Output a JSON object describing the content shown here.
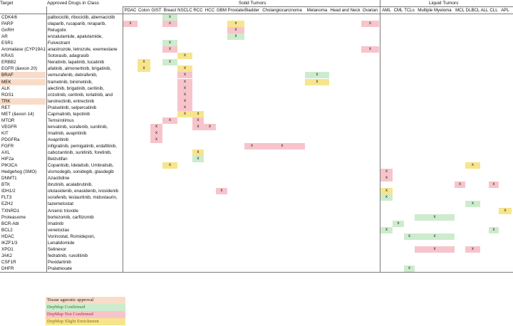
{
  "header": {
    "target": "Target",
    "drugs": "Approved Drugs in Class",
    "solid_group": "Solid Tumors",
    "liquid_group": "Liquid Tumors"
  },
  "solid_columns": [
    "PDAC",
    "Colon",
    "GIST",
    "Breast",
    "NSCLC",
    "RCC",
    "HCC",
    "GBM",
    "Prostate",
    "Bladder",
    "Cholangiocarcinoma",
    "Melanoma",
    "Head and Neck",
    "Ovarian"
  ],
  "liquid_columns": [
    "AML",
    "CML",
    "TCLs",
    "Multiple Myeloma",
    "MCL",
    "DLBCL",
    "ALL",
    "CLL",
    "APL"
  ],
  "colors": {
    "tissue_agnostic": "#f9dcc8",
    "confirmed": "#cdeccd",
    "not_confirmed": "#f7c4cb",
    "slight": "#f6e58d"
  },
  "rows": [
    {
      "target": "CDK4/6",
      "drugs": "palbociclib, ribociclib, abemaciclib",
      "tissue_agnostic": false,
      "marks": [
        {
          "col": "Breast",
          "type": "confirmed"
        }
      ]
    },
    {
      "target": "PARP",
      "drugs": "olaparib, rucaparib, niraparib,",
      "tissue_agnostic": false,
      "marks": [
        {
          "col": "PDAC",
          "type": "not_confirmed"
        },
        {
          "col": "Breast",
          "type": "not_confirmed"
        },
        {
          "col": "Prostate",
          "type": "slight"
        },
        {
          "col": "Ovarian",
          "type": "not_confirmed"
        }
      ]
    },
    {
      "target": "GnRH",
      "drugs": "Relugolix",
      "tissue_agnostic": false,
      "marks": [
        {
          "col": "Prostate",
          "type": "not_confirmed"
        }
      ]
    },
    {
      "target": "AR",
      "drugs": "enzalutamide, apalutamide,",
      "tissue_agnostic": false,
      "marks": [
        {
          "col": "Prostate",
          "type": "confirmed"
        }
      ]
    },
    {
      "target": "ESR1",
      "drugs": "Fulvestrant",
      "tissue_agnostic": false,
      "marks": [
        {
          "col": "Breast",
          "type": "confirmed"
        }
      ]
    },
    {
      "target": "Aromatase (CYP19A1)",
      "drugs": "anastrozole, letrozole, exemestane",
      "tissue_agnostic": false,
      "marks": [
        {
          "col": "Breast",
          "type": "not_confirmed"
        },
        {
          "col": "Ovarian",
          "type": "not_confirmed"
        }
      ]
    },
    {
      "target": "KRAS",
      "drugs": "Sotorasib, adagrasib",
      "tissue_agnostic": false,
      "marks": [
        {
          "col": "NSCLC",
          "type": "slight"
        }
      ]
    },
    {
      "target": "ERBB2",
      "drugs": "Neratinib, lapatinib, tucatinib",
      "tissue_agnostic": false,
      "marks": [
        {
          "col": "Colon",
          "type": "slight"
        },
        {
          "col": "Breast",
          "type": "confirmed"
        }
      ]
    },
    {
      "target": "EGFR (&exon 20)",
      "drugs": "afatinib, almonertinib, brigatinib,",
      "tissue_agnostic": false,
      "marks": [
        {
          "col": "Colon",
          "type": "slight"
        },
        {
          "col": "NSCLC",
          "type": "slight"
        }
      ]
    },
    {
      "target": "BRAF",
      "drugs": "vemurafenib, debrafenib,",
      "tissue_agnostic": true,
      "marks": [
        {
          "col": "NSCLC",
          "type": "not_confirmed"
        },
        {
          "col": "Melanoma",
          "type": "confirmed"
        }
      ]
    },
    {
      "target": "MEK",
      "drugs": "trametinib, binimetinib,",
      "tissue_agnostic": true,
      "marks": [
        {
          "col": "NSCLC",
          "type": "not_confirmed"
        },
        {
          "col": "Melanoma",
          "type": "slight"
        }
      ]
    },
    {
      "target": "ALK",
      "drugs": "alectinib, brigatinib, ceritinib,",
      "tissue_agnostic": false,
      "marks": [
        {
          "col": "NSCLC",
          "type": "not_confirmed"
        }
      ]
    },
    {
      "target": "ROS1",
      "drugs": "crizotinib, ceritinib, lorlatinib, and",
      "tissue_agnostic": false,
      "marks": [
        {
          "col": "NSCLC",
          "type": "not_confirmed"
        }
      ]
    },
    {
      "target": "TRK",
      "drugs": "larotrectinib, entrectinib",
      "tissue_agnostic": true,
      "marks": [
        {
          "col": "NSCLC",
          "type": "not_confirmed"
        }
      ]
    },
    {
      "target": "RET",
      "drugs": "Pralsetinib, selpercatinib",
      "tissue_agnostic": false,
      "marks": [
        {
          "col": "NSCLC",
          "type": "not_confirmed"
        }
      ]
    },
    {
      "target": "MET (&exon 14)",
      "drugs": "Capmatinib, tepotinib",
      "tissue_agnostic": false,
      "marks": [
        {
          "col": "NSCLC",
          "type": "slight"
        },
        {
          "col": "RCC",
          "type": "slight"
        }
      ]
    },
    {
      "target": "MTOR",
      "drugs": "Temsirolimus",
      "tissue_agnostic": false,
      "marks": [
        {
          "col": "Breast",
          "type": "not_confirmed"
        },
        {
          "col": "RCC",
          "type": "not_confirmed"
        }
      ]
    },
    {
      "target": "VEGFR",
      "drugs": "lenvatinib, sorafenib, sunitinib,",
      "tissue_agnostic": false,
      "marks": [
        {
          "col": "GIST",
          "type": "not_confirmed"
        },
        {
          "col": "RCC",
          "type": "not_confirmed"
        },
        {
          "col": "HCC",
          "type": "not_confirmed"
        }
      ]
    },
    {
      "target": "KIT",
      "drugs": "Imatinib, avapritinib",
      "tissue_agnostic": false,
      "marks": [
        {
          "col": "GIST",
          "type": "not_confirmed"
        }
      ]
    },
    {
      "target": "PDGFRa",
      "drugs": "Avapritinib",
      "tissue_agnostic": false,
      "marks": [
        {
          "col": "GIST",
          "type": "not_confirmed"
        }
      ]
    },
    {
      "target": "FGFR",
      "drugs": "infigratinib, pemigatinib, erdafitinib,",
      "tissue_agnostic": false,
      "marks": [
        {
          "col": "Bladder",
          "type": "not_confirmed"
        },
        {
          "col": "Cholangiocarcinoma",
          "type": "not_confirmed"
        }
      ]
    },
    {
      "target": "AXL",
      "drugs": "cabozantinib, sunitinib, foretinib,",
      "tissue_agnostic": false,
      "marks": [
        {
          "col": "RCC",
          "type": "slight"
        }
      ]
    },
    {
      "target": "HIF2a",
      "drugs": "Belzutifan",
      "tissue_agnostic": false,
      "marks": [
        {
          "col": "RCC",
          "type": "confirmed"
        }
      ]
    },
    {
      "target": "PIK3CA",
      "drugs": "Copanlisib, Idelalisib, Umbralisib,",
      "tissue_agnostic": false,
      "marks": [
        {
          "col": "Breast",
          "type": "slight"
        },
        {
          "col": "DLBCL",
          "type": "slight"
        }
      ]
    },
    {
      "target": "Hedgehog (SMO)",
      "drugs": "vismodegib, sonidegib, glasdegib",
      "tissue_agnostic": false,
      "marks": [
        {
          "col": "AML",
          "type": "not_confirmed"
        }
      ]
    },
    {
      "target": "DNMT1",
      "drugs": "Azacitidine",
      "tissue_agnostic": false,
      "marks": [
        {
          "col": "AML",
          "type": "not_confirmed"
        }
      ]
    },
    {
      "target": "BTK",
      "drugs": "ibrutinib, acalabrutinib,",
      "tissue_agnostic": false,
      "marks": [
        {
          "col": "MCL",
          "type": "not_confirmed"
        },
        {
          "col": "CLL",
          "type": "not_confirmed"
        }
      ]
    },
    {
      "target": "IDH1/2",
      "drugs": "olutasidenib, enasidenib, ivosidenib",
      "tissue_agnostic": false,
      "marks": [
        {
          "col": "GBM",
          "type": "not_confirmed"
        },
        {
          "col": "AML",
          "type": "slight"
        }
      ]
    },
    {
      "target": "FLT3",
      "drugs": "sorafenib, lestaurtinib, midostaurin,",
      "tissue_agnostic": false,
      "marks": [
        {
          "col": "AML",
          "type": "confirmed"
        }
      ]
    },
    {
      "target": "EZH2",
      "drugs": "tazemetostat",
      "tissue_agnostic": false,
      "marks": [
        {
          "col": "DLBCL",
          "type": "confirmed"
        }
      ]
    },
    {
      "target": "TXNRD1",
      "drugs": "Arsenic trioxide",
      "tissue_agnostic": false,
      "marks": [
        {
          "col": "APL",
          "type": "slight"
        }
      ]
    },
    {
      "target": "Proteasome",
      "drugs": "bortezomib, carfilzomib",
      "tissue_agnostic": false,
      "marks": [
        {
          "col": "Multiple Myeloma",
          "type": "confirmed"
        }
      ]
    },
    {
      "target": "BCR-Abl",
      "drugs": "Imatinib",
      "tissue_agnostic": false,
      "marks": [
        {
          "col": "CML",
          "type": "confirmed"
        }
      ]
    },
    {
      "target": "BCL2",
      "drugs": "venetoclax",
      "tissue_agnostic": false,
      "marks": [
        {
          "col": "AML",
          "type": "confirmed"
        },
        {
          "col": "CLL",
          "type": "confirmed"
        }
      ]
    },
    {
      "target": "HDAC",
      "drugs": "Vorinostat, Romidepsin,",
      "tissue_agnostic": false,
      "marks": [
        {
          "col": "TCLs",
          "type": "confirmed"
        },
        {
          "col": "Multiple Myeloma",
          "type": "confirmed"
        }
      ]
    },
    {
      "target": "IKZF1/3",
      "drugs": "Lenalidomide",
      "tissue_agnostic": false,
      "marks": []
    },
    {
      "target": "XPO1",
      "drugs": "Selinexor",
      "tissue_agnostic": false,
      "marks": [
        {
          "col": "Multiple Myeloma",
          "type": "not_confirmed"
        },
        {
          "col": "DLBCL",
          "type": "not_confirmed"
        }
      ]
    },
    {
      "target": "JAK2",
      "drugs": "fedratinib, ruxolitinib",
      "tissue_agnostic": false,
      "marks": []
    },
    {
      "target": "CSF1R",
      "drugs": "Pexidartinib",
      "tissue_agnostic": false,
      "marks": []
    },
    {
      "target": "DHFR",
      "drugs": "Pralatrexate",
      "tissue_agnostic": false,
      "marks": [
        {
          "col": "TCLs",
          "type": "confirmed"
        }
      ]
    }
  ],
  "mark_symbol": "x",
  "legend": [
    {
      "key": "tissue_agnostic",
      "label": "Tissue agnostic approval"
    },
    {
      "key": "confirmed",
      "label": "DepMap Confirmed"
    },
    {
      "key": "not_confirmed",
      "label": "DepMap Not Confirmed"
    },
    {
      "key": "slight",
      "label": "DepMap Slight Enrichment"
    }
  ]
}
